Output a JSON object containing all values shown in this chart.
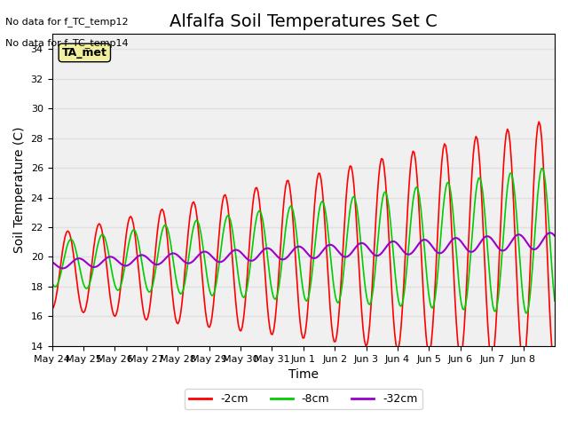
{
  "title": "Alfalfa Soil Temperatures Set C",
  "xlabel": "Time",
  "ylabel": "Soil Temperature (C)",
  "ylim": [
    14,
    35
  ],
  "yticks": [
    14,
    16,
    18,
    20,
    22,
    24,
    26,
    28,
    30,
    32,
    34
  ],
  "text_no_data": [
    "No data for f_TC_temp12",
    "No data for f_TC_temp14"
  ],
  "legend_box_label": "TA_met",
  "legend_box_color": "#f0f0a0",
  "series": [
    {
      "label": "-2cm",
      "color": "#ff0000"
    },
    {
      "label": "-8cm",
      "color": "#00cc00"
    },
    {
      "label": "-32cm",
      "color": "#9900cc"
    }
  ],
  "xtick_labels": [
    "May 24",
    "May 25",
    "May 26",
    "May 27",
    "May 28",
    "May 29",
    "May 30",
    "May 31",
    "Jun 1",
    "Jun 2",
    "Jun 3",
    "Jun 4",
    "Jun 5",
    "Jun 6",
    "Jun 7",
    "Jun 8"
  ],
  "grid_color": "#e0e0e0",
  "bg_color": "#f0f0f0",
  "title_fontsize": 14,
  "axis_label_fontsize": 10,
  "tick_fontsize": 8
}
